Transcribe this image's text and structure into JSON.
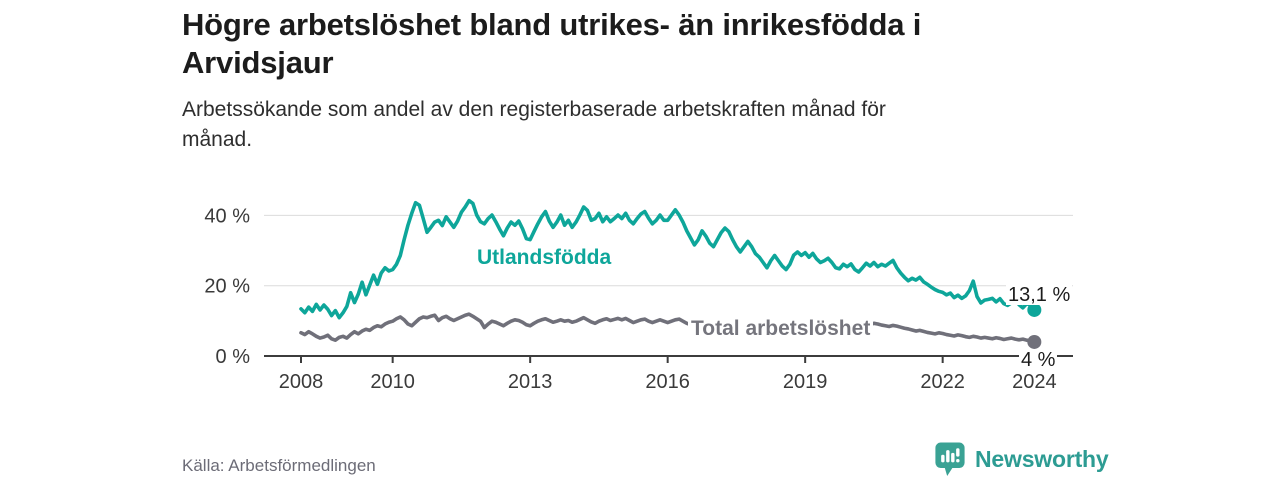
{
  "header": {
    "title_line1": "Högre arbetslöshet bland utrikes- än inrikesfödda i",
    "title_line2": "Arvidsjaur",
    "subtitle_line1": "Arbetssökande som andel av den registerbaserade arbetskraften månad för",
    "subtitle_line2": "månad."
  },
  "footer": {
    "source": "Källa: Arbetsförmedlingen",
    "brand_name": "Newsworthy",
    "brand_icon": "bar-chart-speech-bubble-icon"
  },
  "colors": {
    "teal": "#0ea69a",
    "gray": "#70707a",
    "gridline": "#dcdcdc",
    "axis": "#3c3c3c",
    "tick_text": "#3a3a3a",
    "brand_teal": "#3aa294"
  },
  "chart_data": {
    "type": "line",
    "title": "Högre arbetslöshet bland utrikes- än inrikesfödda i Arvidsjaur",
    "subtitle": "Arbetssökande som andel av den registerbaserade arbetskraften månad för månad.",
    "x_start_year": 2008,
    "points_per_year": 12,
    "x_range": [
      "2008-01",
      "2024-01"
    ],
    "x_ticks": [
      2008,
      2010,
      2013,
      2016,
      2019,
      2022,
      2024
    ],
    "y_ticks": [
      {
        "value": 0,
        "label": "0 %"
      },
      {
        "value": 20,
        "label": "20 %"
      },
      {
        "value": 40,
        "label": "40 %"
      }
    ],
    "ylim": [
      0,
      45
    ],
    "grid": "horizontal-only",
    "legend_position": "inline-labels",
    "series": [
      {
        "name": "Utlandsfödda",
        "label": "Utlandsfödda",
        "end_label": "13,1 %",
        "end_value": 13.1,
        "color": "#0ea69a",
        "values": [
          13.4,
          12.3,
          13.9,
          12.7,
          14.7,
          13.1,
          14.5,
          13.3,
          11.5,
          12.9,
          10.9,
          12.3,
          14.1,
          18.0,
          15.2,
          17.6,
          21.0,
          17.4,
          20.2,
          23.0,
          20.4,
          23.6,
          25.1,
          24.2,
          24.6,
          26.1,
          28.6,
          33.1,
          37.2,
          40.6,
          43.6,
          42.9,
          39.1,
          35.2,
          36.6,
          38.1,
          38.6,
          37.1,
          39.6,
          38.1,
          36.6,
          38.4,
          40.9,
          42.4,
          44.2,
          43.4,
          40.1,
          38.2,
          37.6,
          39.1,
          40.1,
          38.2,
          36.1,
          34.2,
          36.4,
          38.1,
          37.2,
          38.4,
          36.2,
          33.4,
          33.1,
          35.4,
          37.6,
          39.6,
          41.1,
          38.4,
          36.6,
          38.1,
          40.1,
          37.2,
          38.6,
          36.6,
          38.1,
          40.1,
          42.4,
          41.4,
          38.6,
          39.1,
          40.6,
          38.2,
          39.6,
          38.2,
          39.1,
          40.1,
          39.1,
          40.6,
          38.6,
          37.6,
          39.1,
          40.4,
          41.1,
          39.2,
          37.6,
          38.6,
          40.1,
          38.6,
          38.6,
          40.1,
          41.6,
          40.1,
          38.1,
          35.6,
          33.6,
          31.6,
          33.1,
          35.6,
          34.1,
          32.1,
          31.1,
          33.1,
          35.1,
          36.4,
          35.4,
          33.1,
          31.1,
          29.6,
          31.1,
          32.6,
          31.1,
          29.1,
          28.1,
          26.6,
          25.1,
          27.1,
          28.6,
          27.1,
          25.6,
          24.6,
          26.1,
          28.7,
          29.6,
          28.6,
          29.4,
          28.1,
          29.2,
          27.6,
          26.6,
          27.1,
          27.8,
          26.6,
          25.1,
          24.8,
          26.1,
          25.4,
          26.2,
          24.6,
          23.9,
          25.1,
          26.4,
          25.6,
          26.6,
          25.4,
          26.1,
          25.6,
          26.4,
          27.2,
          25.1,
          23.6,
          22.4,
          21.4,
          22.1,
          21.6,
          22.4,
          21.1,
          20.4,
          19.6,
          18.9,
          18.4,
          18.1,
          17.4,
          17.9,
          16.6,
          17.3,
          16.4,
          17.1,
          18.6,
          21.3,
          16.9,
          15.1,
          15.9,
          16.1,
          16.4,
          15.4,
          16.3,
          14.9,
          14.4,
          15.1,
          16.1,
          14.6,
          13.7,
          14.9,
          14.4,
          13.1
        ]
      },
      {
        "name": "Total arbetslöshet",
        "label": "Total arbetslöshet",
        "end_label": "4 %",
        "end_value": 4.0,
        "color": "#70707a",
        "values": [
          6.6,
          6.1,
          6.9,
          6.3,
          5.6,
          5.1,
          5.4,
          5.9,
          4.9,
          4.5,
          5.3,
          5.6,
          5.1,
          6.1,
          6.9,
          6.3,
          7.1,
          7.6,
          7.3,
          8.1,
          8.6,
          8.3,
          9.1,
          9.6,
          9.9,
          10.6,
          11.1,
          10.3,
          9.1,
          8.6,
          9.6,
          10.6,
          11.1,
          10.9,
          11.3,
          11.6,
          10.1,
          10.9,
          11.3,
          10.6,
          10.1,
          10.6,
          11.1,
          11.6,
          11.9,
          11.3,
          10.6,
          9.9,
          8.1,
          9.1,
          9.9,
          9.6,
          9.1,
          8.6,
          9.3,
          9.9,
          10.3,
          10.1,
          9.6,
          8.9,
          8.6,
          9.3,
          9.9,
          10.3,
          10.6,
          10.1,
          9.6,
          9.9,
          10.3,
          9.9,
          10.1,
          9.6,
          9.9,
          10.4,
          10.9,
          10.3,
          9.7,
          9.3,
          9.9,
          10.3,
          10.6,
          10.1,
          10.4,
          10.7,
          10.3,
          10.7,
          10.1,
          9.5,
          9.9,
          10.3,
          10.5,
          9.9,
          9.5,
          9.9,
          10.3,
          9.9,
          9.5,
          9.9,
          10.3,
          10.5,
          9.9,
          9.3,
          8.9,
          9.3,
          9.7,
          9.3,
          8.9,
          9.1,
          9.5,
          9.9,
          10.1,
          9.7,
          9.1,
          8.7,
          8.3,
          8.7,
          9.1,
          8.9,
          8.5,
          8.1,
          7.7,
          7.3,
          6.9,
          7.3,
          7.9,
          7.6,
          7.2,
          6.9,
          7.4,
          7.9,
          8.2,
          7.9,
          8.3,
          8.6,
          8.4,
          8.1,
          7.9,
          8.2,
          8.5,
          8.3,
          8.7,
          8.9,
          8.7,
          8.6,
          8.9,
          9.2,
          9.6,
          9.3,
          9.1,
          8.9,
          9.3,
          9.1,
          8.8,
          8.6,
          8.4,
          8.7,
          8.5,
          8.2,
          7.9,
          7.7,
          7.4,
          7.1,
          7.3,
          7.0,
          6.7,
          6.5,
          6.3,
          6.6,
          6.4,
          6.1,
          5.9,
          5.7,
          6.0,
          5.8,
          5.5,
          5.3,
          5.6,
          5.4,
          5.1,
          5.3,
          5.1,
          4.9,
          5.2,
          5.0,
          4.7,
          4.9,
          5.1,
          4.8,
          4.6,
          4.8,
          4.5,
          4.3,
          4.0
        ]
      }
    ]
  }
}
